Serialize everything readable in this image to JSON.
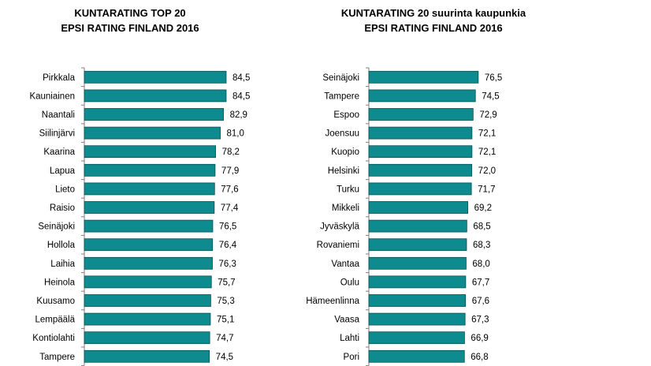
{
  "chart_data": [
    {
      "type": "bar",
      "orientation": "horizontal",
      "title": "KUNTARATING TOP 20",
      "subtitle": "EPSI RATING FINLAND 2016",
      "categories": [
        "Pirkkala",
        "Kauniainen",
        "Naantali",
        "Siilinjärvi",
        "Kaarina",
        "Lapua",
        "Lieto",
        "Raisio",
        "Seinäjoki",
        "Hollola",
        "Laihia",
        "Heinola",
        "Kuusamo",
        "Lempäälä",
        "Kontiolahti",
        "Tampere"
      ],
      "values": [
        84.5,
        84.5,
        82.9,
        81.0,
        78.2,
        77.9,
        77.6,
        77.4,
        76.5,
        76.4,
        76.3,
        75.7,
        75.3,
        75.1,
        74.7,
        74.5
      ],
      "value_labels": [
        "84,5",
        "84,5",
        "82,9",
        "81,0",
        "78,2",
        "77,9",
        "77,6",
        "77,4",
        "76,5",
        "76,4",
        "76,3",
        "75,7",
        "75,3",
        "75,1",
        "74,7",
        "74,5"
      ],
      "xlim": [
        0,
        100
      ],
      "grid": false,
      "bar_color": "#0e8b8e"
    },
    {
      "type": "bar",
      "orientation": "horizontal",
      "title": "KUNTARATING 20 suurinta kaupunkia",
      "subtitle": "EPSI RATING FINLAND 2016",
      "categories": [
        "Seinäjoki",
        "Tampere",
        "Espoo",
        "Joensuu",
        "Kuopio",
        "Helsinki",
        "Turku",
        "Mikkeli",
        "Jyväskylä",
        "Rovaniemi",
        "Vantaa",
        "Oulu",
        "Hämeenlinna",
        "Vaasa",
        "Lahti",
        "Pori"
      ],
      "values": [
        76.5,
        74.5,
        72.9,
        72.1,
        72.1,
        72.0,
        71.7,
        69.2,
        68.5,
        68.3,
        68.0,
        67.7,
        67.6,
        67.3,
        66.9,
        66.8
      ],
      "value_labels": [
        "76,5",
        "74,5",
        "72,9",
        "72,1",
        "72,1",
        "72,0",
        "71,7",
        "69,2",
        "68,5",
        "68,3",
        "68,0",
        "67,7",
        "67,6",
        "67,3",
        "66,9",
        "66,8"
      ],
      "xlim": [
        0,
        100
      ],
      "grid": false,
      "bar_color": "#0e8b8e"
    }
  ]
}
